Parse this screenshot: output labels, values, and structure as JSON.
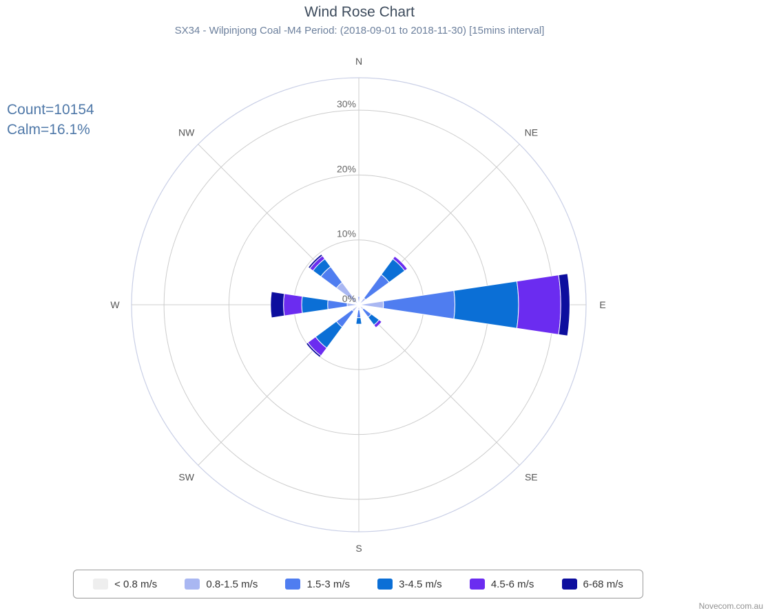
{
  "header": {
    "title": "Wind Rose Chart",
    "subtitle": "SX34 - Wilpinjong Coal -M4 Period: (2018-09-01 to 2018-11-30) [15mins interval]"
  },
  "stats": {
    "count_label": "Count=10154",
    "calm_label": "Calm=16.1%"
  },
  "credit": "Novecom.com.au",
  "chart_data": {
    "type": "wind-rose",
    "title": "Wind Rose Chart",
    "subtitle": "SX34 - Wilpinjong Coal -M4 Period: (2018-09-01 to 2018-11-30) [15mins interval]",
    "radial_unit": "%",
    "radial_max": 35,
    "radial_ticks": [
      0,
      10,
      20,
      30
    ],
    "radial_tick_labels": [
      "0%",
      "10%",
      "20%",
      "30%"
    ],
    "directions": [
      "N",
      "NE",
      "E",
      "SE",
      "S",
      "SW",
      "W",
      "NW"
    ],
    "direction_angles": [
      0,
      45,
      90,
      135,
      180,
      225,
      270,
      315
    ],
    "series": [
      {
        "name": "< 0.8 m/s",
        "color": "#eeeeee",
        "values": [
          0.3,
          0.3,
          0.3,
          0.3,
          0.3,
          0.3,
          0.3,
          0.3
        ]
      },
      {
        "name": "0.8-1.5 m/s",
        "color": "#a9b7f2",
        "values": [
          1.0,
          1.0,
          3.5,
          0.6,
          0.5,
          1.0,
          1.5,
          4.0
        ]
      },
      {
        "name": "1.5-3 m/s",
        "color": "#4f7df0",
        "values": [
          0,
          4.5,
          11.0,
          1.5,
          1.2,
          3.0,
          3.0,
          3.0
        ]
      },
      {
        "name": "3-4.5 m/s",
        "color": "#0b6fd6",
        "values": [
          0,
          3.0,
          9.8,
          1.5,
          1.0,
          4.0,
          4.0,
          1.5
        ]
      },
      {
        "name": "4.5-6 m/s",
        "color": "#6b2cf0",
        "values": [
          0,
          0.5,
          6.5,
          0.5,
          0,
          1.5,
          2.8,
          0.6
        ]
      },
      {
        "name": "6-68 m/s",
        "color": "#0d0e9e",
        "values": [
          0,
          0,
          1.4,
          0,
          0,
          0.3,
          2.0,
          0.3
        ]
      }
    ],
    "grid": true,
    "legend_position": "bottom"
  }
}
